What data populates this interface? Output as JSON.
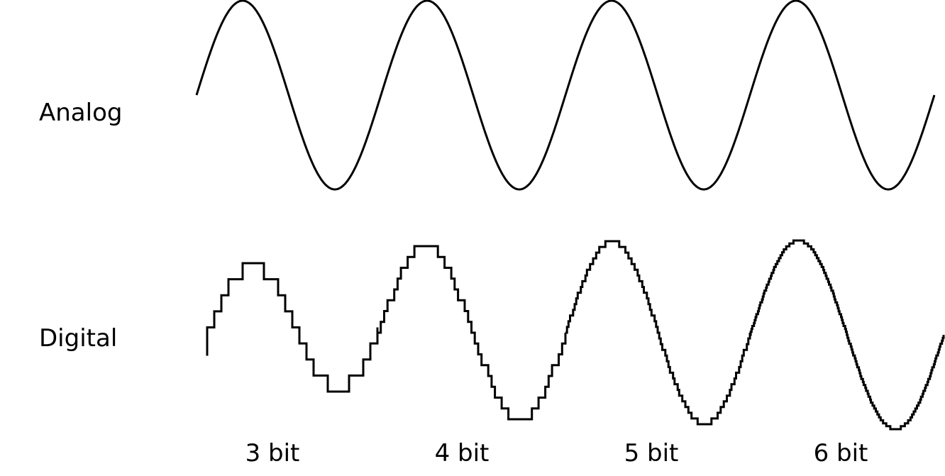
{
  "labels": {
    "analog": "Analog",
    "digital": "Digital"
  },
  "segments": [
    {
      "bits_label": "3 bit",
      "bits": 3
    },
    {
      "bits_label": "4 bit",
      "bits": 4
    },
    {
      "bits_label": "5 bit",
      "bits": 5
    },
    {
      "bits_label": "6 bit",
      "bits": 6
    }
  ],
  "colors": {
    "line": "#000000",
    "background": "#ffffff"
  }
}
